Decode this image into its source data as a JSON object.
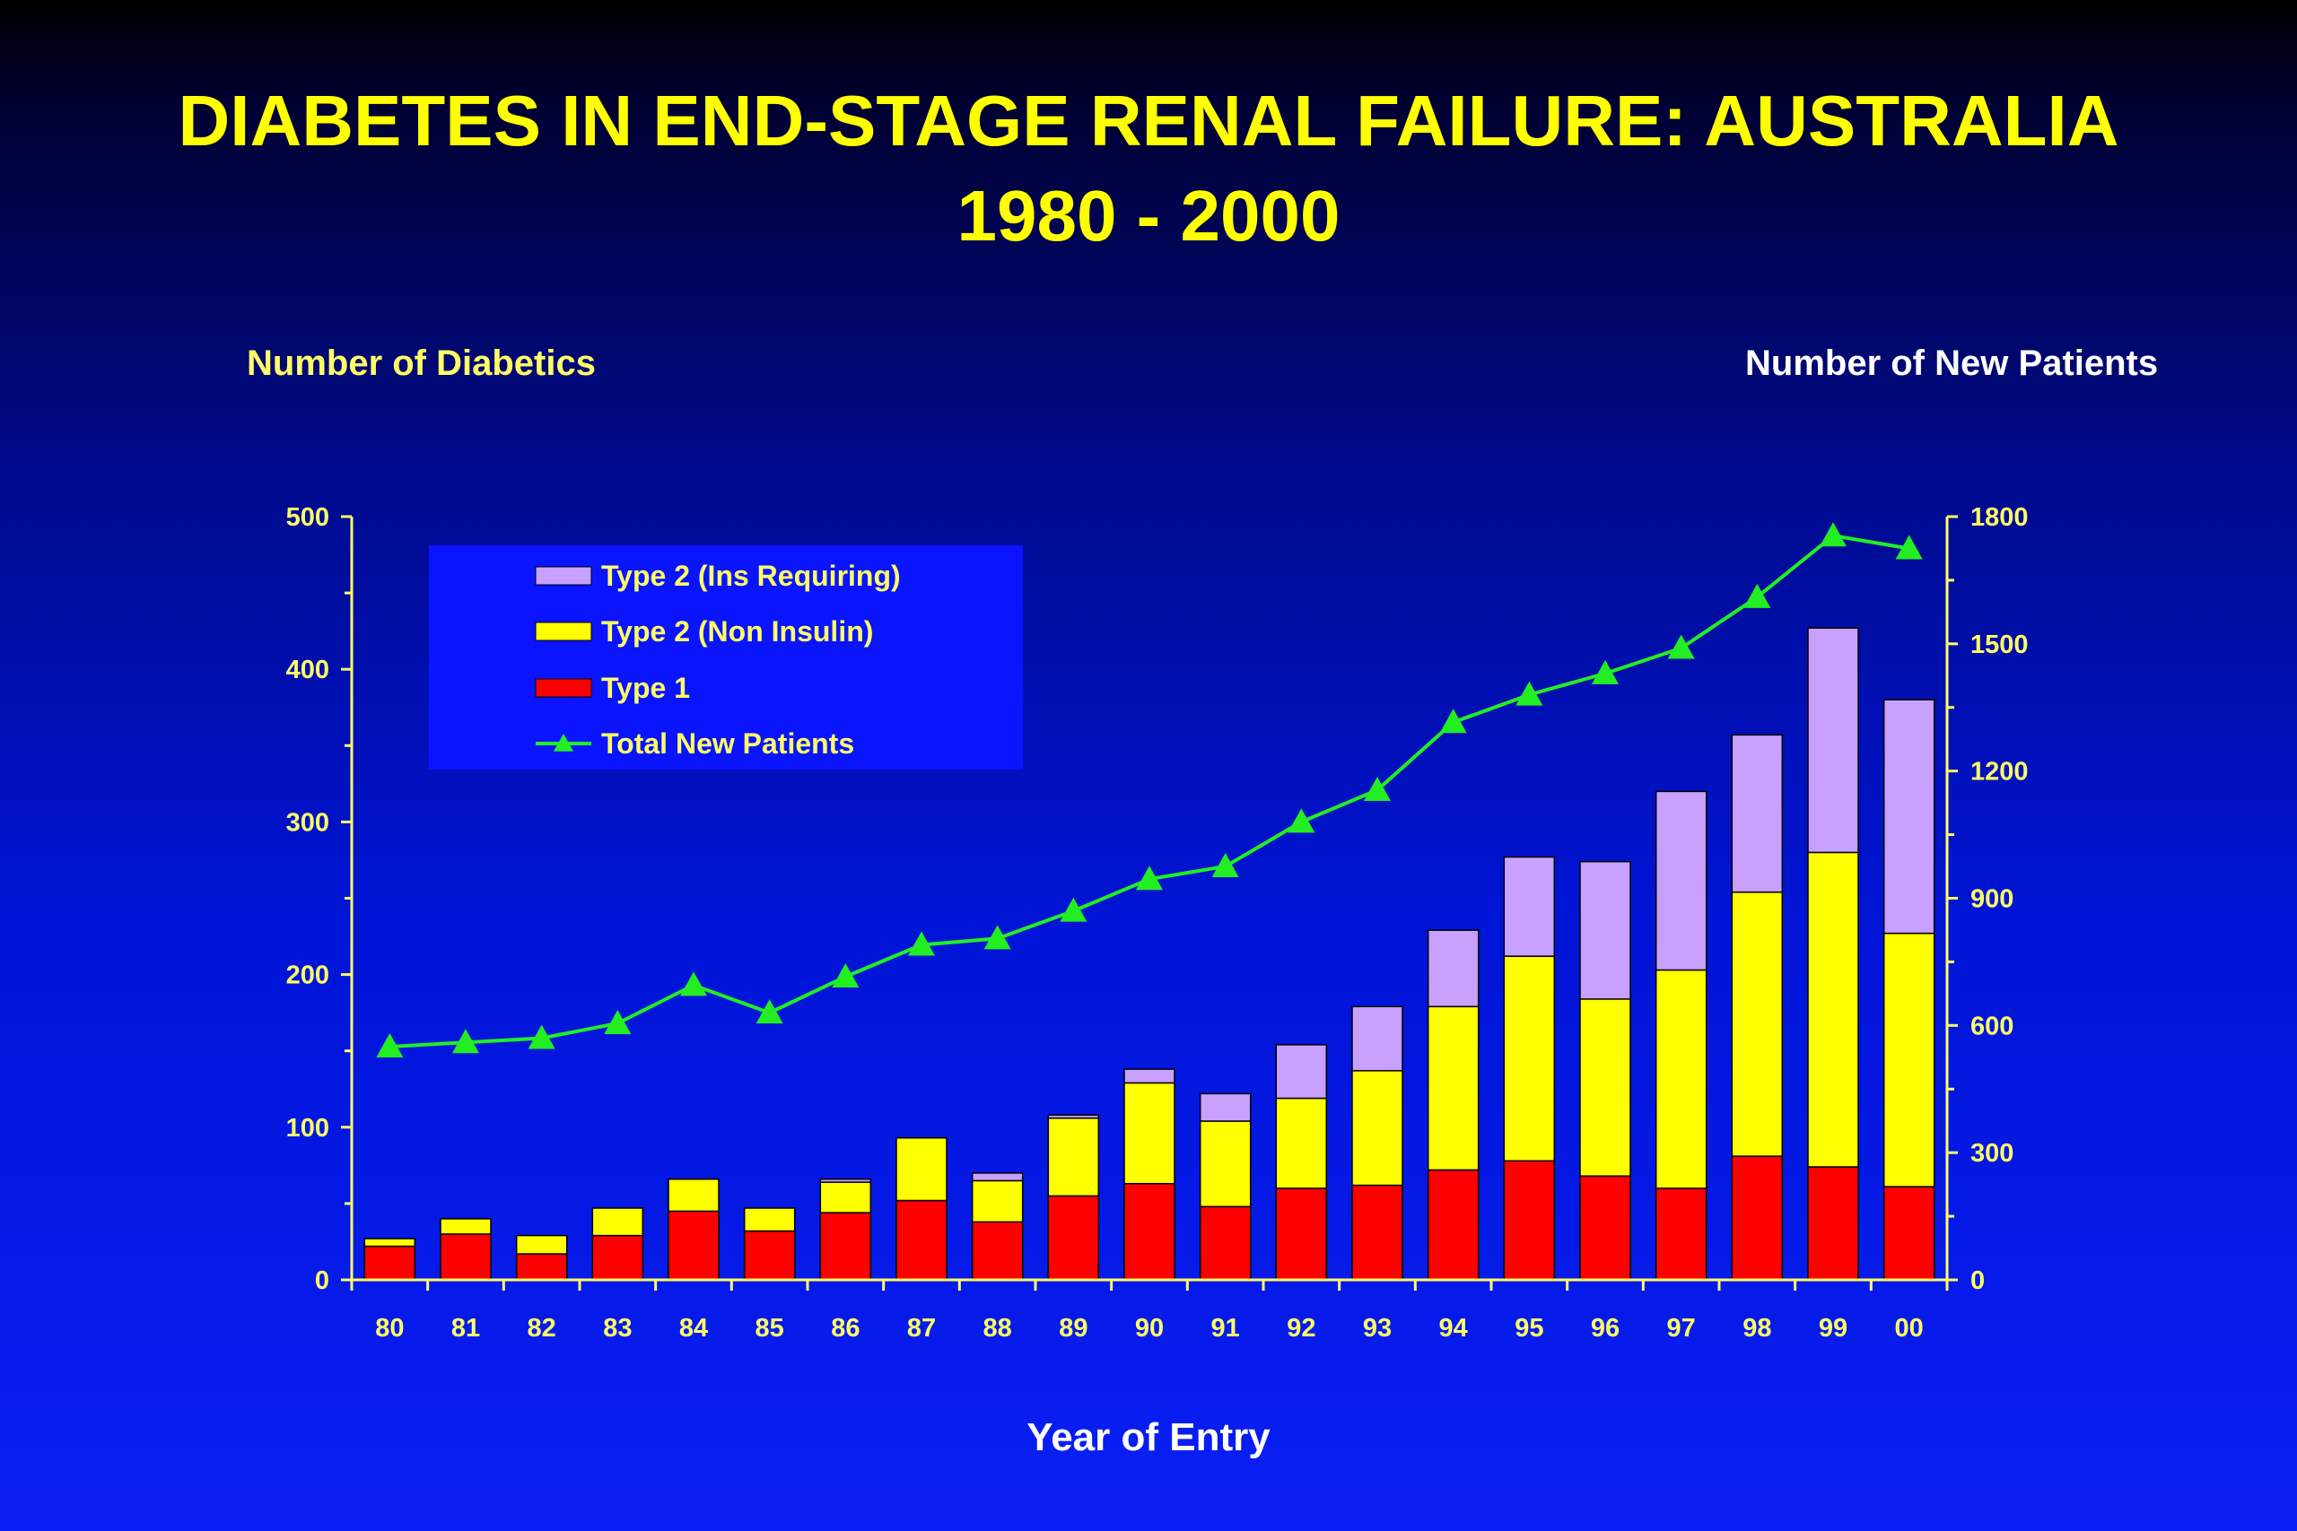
{
  "title": {
    "line1": "DIABETES IN END-STAGE RENAL FAILURE: AUSTRALIA",
    "line2": "1980 - 2000"
  },
  "colors": {
    "type1": "#ff0000",
    "type2_non_insulin": "#ffff00",
    "type2_ins_requiring": "#c8a0ff",
    "total": "#22ee22",
    "axis": "#ffff66",
    "legend_bg": "#0a14ff"
  },
  "chart_data": {
    "type": "bar",
    "stacked": true,
    "title": "DIABETES IN END-STAGE RENAL FAILURE: AUSTRALIA 1980 - 2000",
    "xlabel": "Year of Entry",
    "ylabel": "Number of Diabetics",
    "y2label": "Number of New Patients",
    "ylim": [
      0,
      500
    ],
    "y2lim": [
      0,
      1800
    ],
    "yticks": [
      0,
      100,
      200,
      300,
      400,
      500
    ],
    "y2ticks": [
      0,
      300,
      600,
      900,
      1200,
      1500,
      1800
    ],
    "categories": [
      "80",
      "81",
      "82",
      "83",
      "84",
      "85",
      "86",
      "87",
      "88",
      "89",
      "90",
      "91",
      "92",
      "93",
      "94",
      "95",
      "96",
      "97",
      "98",
      "99",
      "00"
    ],
    "series": [
      {
        "name": "Type 1",
        "kind": "bar",
        "axis": "left",
        "values": [
          22,
          30,
          17,
          29,
          45,
          32,
          44,
          52,
          38,
          55,
          63,
          48,
          60,
          62,
          72,
          78,
          68,
          60,
          81,
          74,
          61
        ]
      },
      {
        "name": "Type 2 (Non Insulin)",
        "kind": "bar",
        "axis": "left",
        "values": [
          5,
          10,
          12,
          18,
          21,
          15,
          20,
          41,
          27,
          51,
          66,
          56,
          59,
          75,
          107,
          134,
          116,
          143,
          173,
          206,
          166
        ]
      },
      {
        "name": "Type 2 (Ins Requiring)",
        "kind": "bar",
        "axis": "left",
        "values": [
          0,
          0,
          0,
          0,
          0,
          0,
          2,
          0,
          5,
          2,
          9,
          18,
          35,
          42,
          50,
          65,
          90,
          117,
          103,
          147,
          153
        ]
      },
      {
        "name": "Total New Patients",
        "kind": "line",
        "axis": "right",
        "values": [
          550,
          560,
          570,
          605,
          695,
          630,
          715,
          790,
          805,
          870,
          945,
          975,
          1080,
          1155,
          1315,
          1380,
          1430,
          1490,
          1610,
          1755,
          1725
        ]
      }
    ],
    "legend": {
      "position": "top-left",
      "entries": [
        "Type 2 (Ins Requiring)",
        "Type 2 (Non Insulin)",
        "Type 1",
        "Total New Patients"
      ]
    },
    "grid": false
  }
}
